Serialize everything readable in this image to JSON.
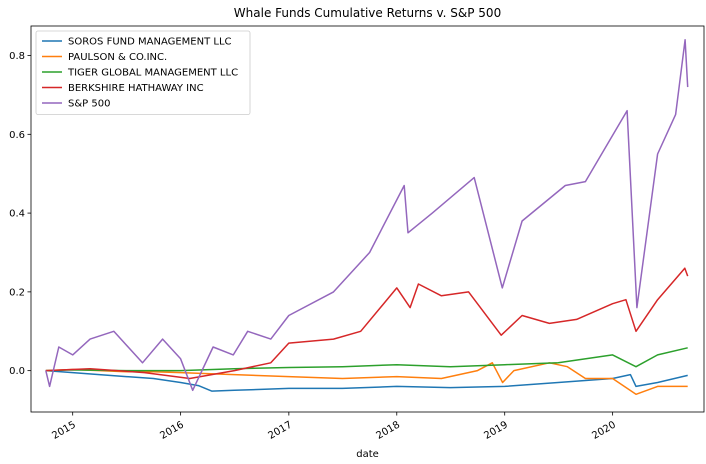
{
  "chart_data": {
    "type": "line",
    "title": "Whale Funds Cumulative Returns v. S&P 500",
    "xlabel": "date",
    "ylabel": "",
    "xlim": [
      "2014-08-13",
      "2020-11-05"
    ],
    "ylim": [
      -0.105,
      0.875
    ],
    "x_ticks": [
      "2015",
      "2016",
      "2017",
      "2018",
      "2019",
      "2020"
    ],
    "y_ticks": [
      "0.0",
      "0.2",
      "0.4",
      "0.6",
      "0.8"
    ],
    "legend_position": "top-left",
    "grid": false,
    "series": [
      {
        "name": "SOROS FUND MANAGEMENT LLC",
        "color": "#1f77b4",
        "points": [
          [
            "2014-10-02",
            0.0
          ],
          [
            "2015-01-01",
            -0.005
          ],
          [
            "2015-04-01",
            -0.01
          ],
          [
            "2015-07-01",
            -0.015
          ],
          [
            "2015-10-01",
            -0.02
          ],
          [
            "2016-01-01",
            -0.03
          ],
          [
            "2016-03-01",
            -0.038
          ],
          [
            "2016-04-15",
            -0.052
          ],
          [
            "2016-07-01",
            -0.05
          ],
          [
            "2017-01-01",
            -0.045
          ],
          [
            "2017-07-01",
            -0.045
          ],
          [
            "2018-01-01",
            -0.04
          ],
          [
            "2018-07-01",
            -0.043
          ],
          [
            "2019-01-01",
            -0.04
          ],
          [
            "2019-07-01",
            -0.03
          ],
          [
            "2020-01-01",
            -0.02
          ],
          [
            "2020-03-01",
            -0.01
          ],
          [
            "2020-03-20",
            -0.04
          ],
          [
            "2020-06-01",
            -0.03
          ],
          [
            "2020-09-11",
            -0.012
          ]
        ]
      },
      {
        "name": "PAULSON & CO.INC.",
        "color": "#ff7f0e",
        "points": [
          [
            "2014-10-02",
            0.0
          ],
          [
            "2015-01-01",
            0.003
          ],
          [
            "2015-04-01",
            0.0
          ],
          [
            "2015-07-01",
            -0.003
          ],
          [
            "2015-10-01",
            -0.003
          ],
          [
            "2016-01-01",
            -0.005
          ],
          [
            "2016-07-01",
            -0.01
          ],
          [
            "2017-01-01",
            -0.015
          ],
          [
            "2017-07-01",
            -0.02
          ],
          [
            "2018-01-01",
            -0.015
          ],
          [
            "2018-06-01",
            -0.02
          ],
          [
            "2018-10-01",
            0.0
          ],
          [
            "2018-11-20",
            0.02
          ],
          [
            "2018-12-25",
            -0.03
          ],
          [
            "2019-02-01",
            0.0
          ],
          [
            "2019-06-01",
            0.02
          ],
          [
            "2019-08-01",
            0.01
          ],
          [
            "2019-10-01",
            -0.02
          ],
          [
            "2020-01-01",
            -0.02
          ],
          [
            "2020-03-20",
            -0.06
          ],
          [
            "2020-06-01",
            -0.04
          ],
          [
            "2020-09-11",
            -0.04
          ]
        ]
      },
      {
        "name": "TIGER GLOBAL MANAGEMENT LLC",
        "color": "#2ca02c",
        "points": [
          [
            "2014-10-02",
            0.0
          ],
          [
            "2015-01-01",
            0.002
          ],
          [
            "2015-07-01",
            0.0
          ],
          [
            "2016-01-01",
            0.0
          ],
          [
            "2016-07-01",
            0.005
          ],
          [
            "2017-01-01",
            0.008
          ],
          [
            "2017-07-01",
            0.01
          ],
          [
            "2018-01-01",
            0.015
          ],
          [
            "2018-07-01",
            0.01
          ],
          [
            "2019-01-01",
            0.015
          ],
          [
            "2019-07-01",
            0.02
          ],
          [
            "2020-01-01",
            0.04
          ],
          [
            "2020-03-20",
            0.01
          ],
          [
            "2020-06-01",
            0.04
          ],
          [
            "2020-09-11",
            0.058
          ]
        ]
      },
      {
        "name": "BERKSHIRE HATHAWAY INC",
        "color": "#d62728",
        "points": [
          [
            "2014-10-02",
            0.0
          ],
          [
            "2015-03-01",
            0.005
          ],
          [
            "2015-09-01",
            -0.005
          ],
          [
            "2016-02-01",
            -0.02
          ],
          [
            "2016-07-01",
            0.0
          ],
          [
            "2016-11-01",
            0.02
          ],
          [
            "2017-01-01",
            0.07
          ],
          [
            "2017-06-01",
            0.08
          ],
          [
            "2017-09-01",
            0.1
          ],
          [
            "2018-01-01",
            0.21
          ],
          [
            "2018-02-15",
            0.16
          ],
          [
            "2018-03-15",
            0.22
          ],
          [
            "2018-06-01",
            0.19
          ],
          [
            "2018-09-01",
            0.2
          ],
          [
            "2018-12-20",
            0.09
          ],
          [
            "2019-03-01",
            0.14
          ],
          [
            "2019-06-01",
            0.12
          ],
          [
            "2019-09-01",
            0.13
          ],
          [
            "2020-01-01",
            0.17
          ],
          [
            "2020-02-15",
            0.18
          ],
          [
            "2020-03-20",
            0.1
          ],
          [
            "2020-06-01",
            0.18
          ],
          [
            "2020-09-01",
            0.26
          ],
          [
            "2020-09-11",
            0.24
          ]
        ]
      },
      {
        "name": "S&P 500",
        "color": "#9467bd",
        "points": [
          [
            "2014-10-02",
            0.0
          ],
          [
            "2014-10-15",
            -0.04
          ],
          [
            "2014-11-15",
            0.06
          ],
          [
            "2015-01-01",
            0.04
          ],
          [
            "2015-03-01",
            0.08
          ],
          [
            "2015-05-20",
            0.1
          ],
          [
            "2015-08-25",
            0.02
          ],
          [
            "2015-11-01",
            0.08
          ],
          [
            "2016-01-01",
            0.03
          ],
          [
            "2016-02-11",
            -0.05
          ],
          [
            "2016-04-20",
            0.06
          ],
          [
            "2016-06-27",
            0.04
          ],
          [
            "2016-08-15",
            0.1
          ],
          [
            "2016-11-01",
            0.08
          ],
          [
            "2017-01-01",
            0.14
          ],
          [
            "2017-06-01",
            0.2
          ],
          [
            "2017-10-01",
            0.3
          ],
          [
            "2018-01-26",
            0.47
          ],
          [
            "2018-02-08",
            0.35
          ],
          [
            "2018-05-01",
            0.4
          ],
          [
            "2018-09-20",
            0.49
          ],
          [
            "2018-12-24",
            0.21
          ],
          [
            "2019-03-01",
            0.38
          ],
          [
            "2019-07-25",
            0.47
          ],
          [
            "2019-10-01",
            0.48
          ],
          [
            "2020-02-19",
            0.66
          ],
          [
            "2020-03-23",
            0.16
          ],
          [
            "2020-06-01",
            0.55
          ],
          [
            "2020-08-01",
            0.65
          ],
          [
            "2020-09-02",
            0.84
          ],
          [
            "2020-09-11",
            0.72
          ]
        ]
      }
    ]
  }
}
